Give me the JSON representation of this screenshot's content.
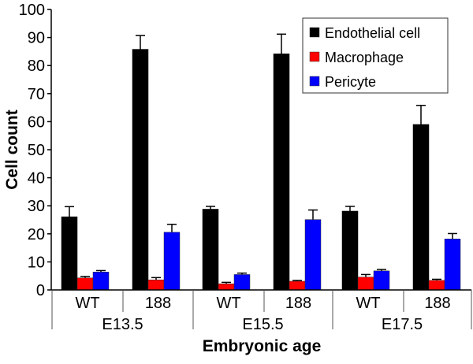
{
  "chart_data": {
    "type": "bar",
    "title": "",
    "xlabel": "Embryonic age",
    "ylabel": "Cell count",
    "ylim": [
      0,
      100
    ],
    "yticks": [
      0,
      10,
      20,
      30,
      40,
      50,
      60,
      70,
      80,
      90,
      100
    ],
    "grid": false,
    "legend_position": "top-right",
    "groups": [
      "E13.5",
      "E15.5",
      "E17.5"
    ],
    "subgroups": [
      "WT",
      "188"
    ],
    "categories": [
      "E13.5 WT",
      "E13.5 188",
      "E15.5 WT",
      "E15.5 188",
      "E17.5 WT",
      "E17.5 188"
    ],
    "series": [
      {
        "name": "Endothelial cell",
        "color": "#000000",
        "values": [
          26.1,
          85.8,
          28.8,
          84.2,
          28.1,
          59.0
        ],
        "errors": [
          3.6,
          4.9,
          1.0,
          7.0,
          1.7,
          6.8
        ]
      },
      {
        "name": "Macrophage",
        "color": "#ff0000",
        "values": [
          4.3,
          3.6,
          2.2,
          3.1,
          4.6,
          3.4
        ],
        "errors": [
          0.5,
          0.8,
          0.5,
          0.3,
          0.9,
          0.4
        ]
      },
      {
        "name": "Pericyte",
        "color": "#0000ff",
        "values": [
          6.4,
          20.6,
          5.5,
          25.1,
          6.8,
          18.2
        ],
        "errors": [
          0.5,
          2.8,
          0.5,
          3.4,
          0.5,
          1.9
        ]
      }
    ]
  }
}
